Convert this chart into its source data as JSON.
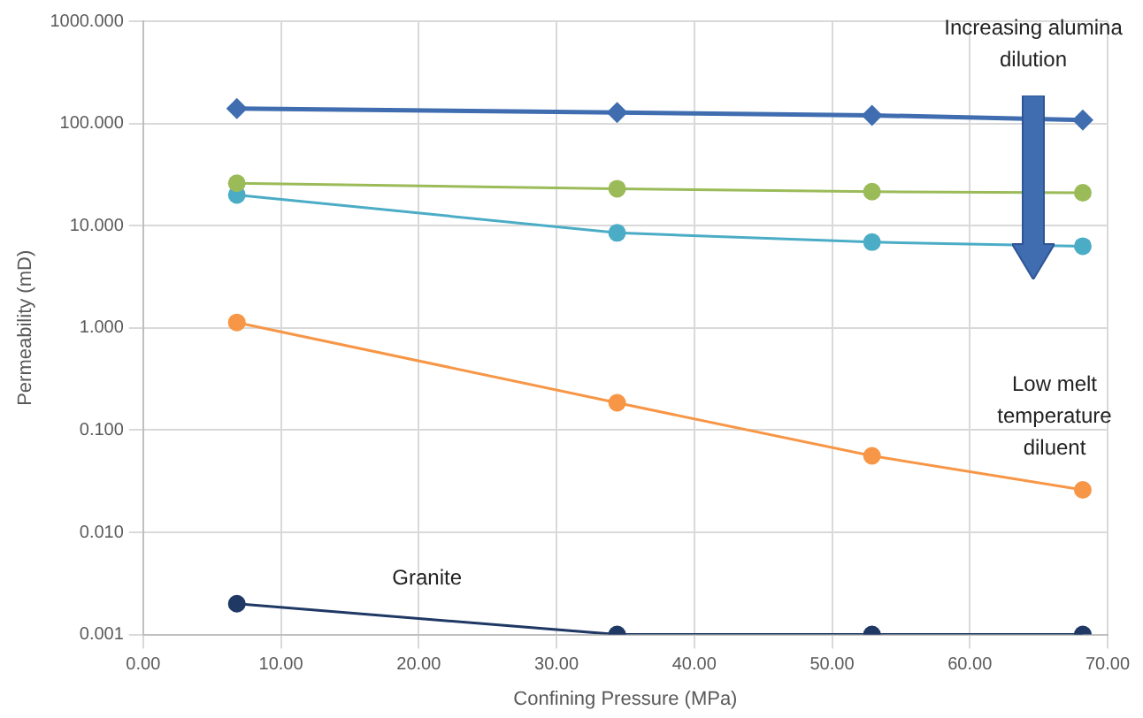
{
  "chart_data": {
    "type": "line",
    "xlabel": "Confining Pressure (MPa)",
    "ylabel": "Permeability (mD)",
    "log": "y",
    "grid": true,
    "legend": false,
    "xlim": [
      0,
      70
    ],
    "xticks": [
      {
        "value": 0,
        "label": "0.00"
      },
      {
        "value": 10,
        "label": "10.00"
      },
      {
        "value": 20,
        "label": "20.00"
      },
      {
        "value": 30,
        "label": "30.00"
      },
      {
        "value": 40,
        "label": "40.00"
      },
      {
        "value": 50,
        "label": "50.00"
      },
      {
        "value": 60,
        "label": "60.00"
      },
      {
        "value": 70,
        "label": "70.00"
      }
    ],
    "ylim": [
      0.001,
      1000
    ],
    "yticks": [
      {
        "value": 0.001,
        "label": "0.001"
      },
      {
        "value": 0.01,
        "label": "0.010"
      },
      {
        "value": 0.1,
        "label": "0.100"
      },
      {
        "value": 1,
        "label": "1.000"
      },
      {
        "value": 10,
        "label": "10.000"
      },
      {
        "value": 100,
        "label": "100.000"
      },
      {
        "value": 1000,
        "label": "1000.000"
      }
    ],
    "x": [
      6.8,
      34.4,
      52.9,
      68.2
    ],
    "series": [
      {
        "color": "#3f6db0",
        "marker": "diamond",
        "values": [
          140,
          128,
          120,
          108
        ]
      },
      {
        "color": "#9bbb59",
        "marker": "circle",
        "values": [
          26,
          23,
          21.5,
          21
        ]
      },
      {
        "color": "#4bacc6",
        "marker": "circle",
        "values": [
          20,
          8.5,
          6.9,
          6.3
        ]
      },
      {
        "color": "#f79646",
        "marker": "circle",
        "values": [
          1.13,
          0.185,
          0.056,
          0.026
        ]
      },
      {
        "name": "Granite",
        "color": "#1f3864",
        "marker": "circle",
        "values": [
          0.002,
          0.001,
          0.001,
          0.001
        ]
      }
    ],
    "annotations": [
      "Increasing alumina dilution",
      "Low melt temperature diluent"
    ]
  }
}
